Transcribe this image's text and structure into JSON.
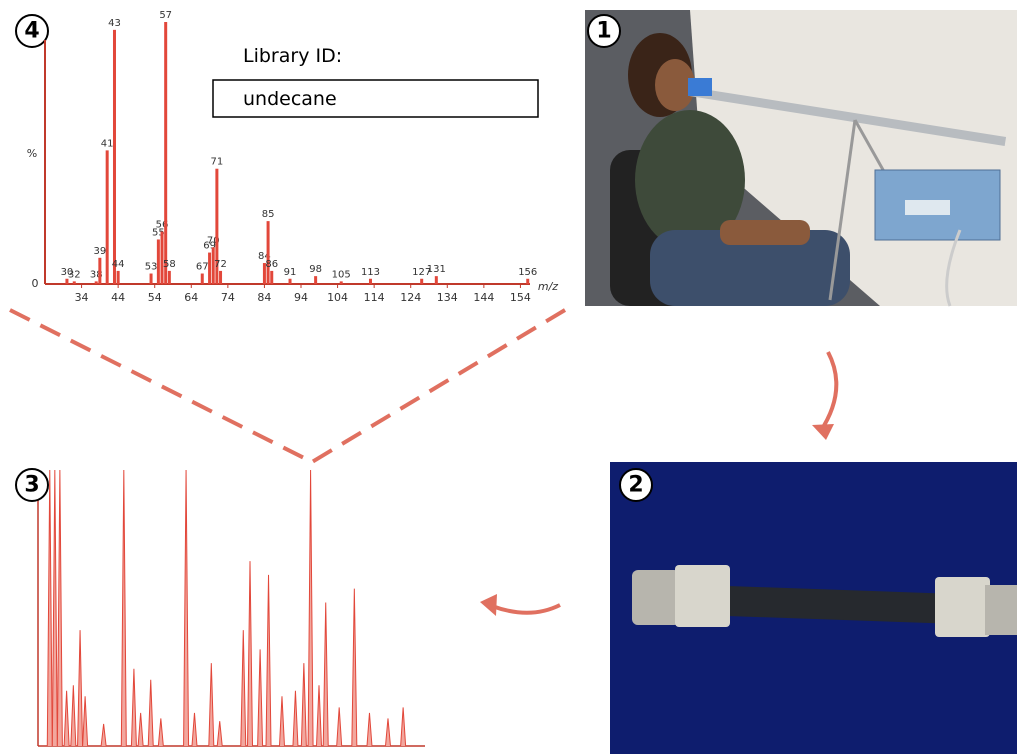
{
  "panels": {
    "spectrum_number": "4",
    "photo_number": "1",
    "tube_number": "2",
    "chromatogram_number": "3"
  },
  "library": {
    "label": "Library ID:",
    "value": "undecane"
  },
  "spectrum": {
    "y_axis_label": "%",
    "zero_label": "0",
    "x_axis_label": "m/z",
    "xlim": [
      24,
      164
    ],
    "ylim": [
      0,
      100
    ],
    "xticks": [
      34,
      44,
      54,
      64,
      74,
      84,
      94,
      104,
      114,
      124,
      134,
      144,
      154
    ],
    "peaks": [
      {
        "mz": 30,
        "intensity": 2
      },
      {
        "mz": 32,
        "intensity": 1
      },
      {
        "mz": 38,
        "intensity": 1
      },
      {
        "mz": 39,
        "intensity": 10
      },
      {
        "mz": 41,
        "intensity": 51
      },
      {
        "mz": 43,
        "intensity": 97
      },
      {
        "mz": 44,
        "intensity": 5
      },
      {
        "mz": 53,
        "intensity": 4
      },
      {
        "mz": 55,
        "intensity": 17
      },
      {
        "mz": 56,
        "intensity": 20
      },
      {
        "mz": 57,
        "intensity": 100
      },
      {
        "mz": 58,
        "intensity": 5
      },
      {
        "mz": 67,
        "intensity": 4
      },
      {
        "mz": 69,
        "intensity": 12
      },
      {
        "mz": 70,
        "intensity": 14
      },
      {
        "mz": 71,
        "intensity": 44
      },
      {
        "mz": 72,
        "intensity": 5
      },
      {
        "mz": 84,
        "intensity": 8
      },
      {
        "mz": 85,
        "intensity": 24
      },
      {
        "mz": 86,
        "intensity": 5
      },
      {
        "mz": 91,
        "intensity": 2
      },
      {
        "mz": 98,
        "intensity": 3
      },
      {
        "mz": 105,
        "intensity": 1
      },
      {
        "mz": 113,
        "intensity": 2
      },
      {
        "mz": 127,
        "intensity": 2
      },
      {
        "mz": 131,
        "intensity": 3
      },
      {
        "mz": 156,
        "intensity": 2
      }
    ]
  },
  "chromatogram": {
    "xlim": [
      1.5,
      24.5
    ],
    "ylim": [
      0,
      100
    ],
    "peaks": [
      {
        "t": 2.2,
        "h": 100
      },
      {
        "t": 2.5,
        "h": 100
      },
      {
        "t": 2.8,
        "h": 100
      },
      {
        "t": 3.2,
        "h": 20
      },
      {
        "t": 3.6,
        "h": 22
      },
      {
        "t": 4.0,
        "h": 42
      },
      {
        "t": 4.3,
        "h": 18
      },
      {
        "t": 5.4,
        "h": 8
      },
      {
        "t": 6.6,
        "h": 100
      },
      {
        "t": 7.2,
        "h": 28
      },
      {
        "t": 7.6,
        "h": 12
      },
      {
        "t": 8.2,
        "h": 24
      },
      {
        "t": 8.8,
        "h": 10
      },
      {
        "t": 10.3,
        "h": 100
      },
      {
        "t": 10.8,
        "h": 12
      },
      {
        "t": 11.8,
        "h": 30
      },
      {
        "t": 12.3,
        "h": 9
      },
      {
        "t": 13.7,
        "h": 42
      },
      {
        "t": 14.1,
        "h": 67
      },
      {
        "t": 14.7,
        "h": 35
      },
      {
        "t": 15.2,
        "h": 62
      },
      {
        "t": 16.0,
        "h": 18
      },
      {
        "t": 16.8,
        "h": 20
      },
      {
        "t": 17.3,
        "h": 30
      },
      {
        "t": 17.7,
        "h": 100
      },
      {
        "t": 18.2,
        "h": 22
      },
      {
        "t": 18.6,
        "h": 52
      },
      {
        "t": 19.4,
        "h": 14
      },
      {
        "t": 20.3,
        "h": 57
      },
      {
        "t": 21.2,
        "h": 12
      },
      {
        "t": 22.3,
        "h": 10
      },
      {
        "t": 23.2,
        "h": 14
      }
    ]
  }
}
